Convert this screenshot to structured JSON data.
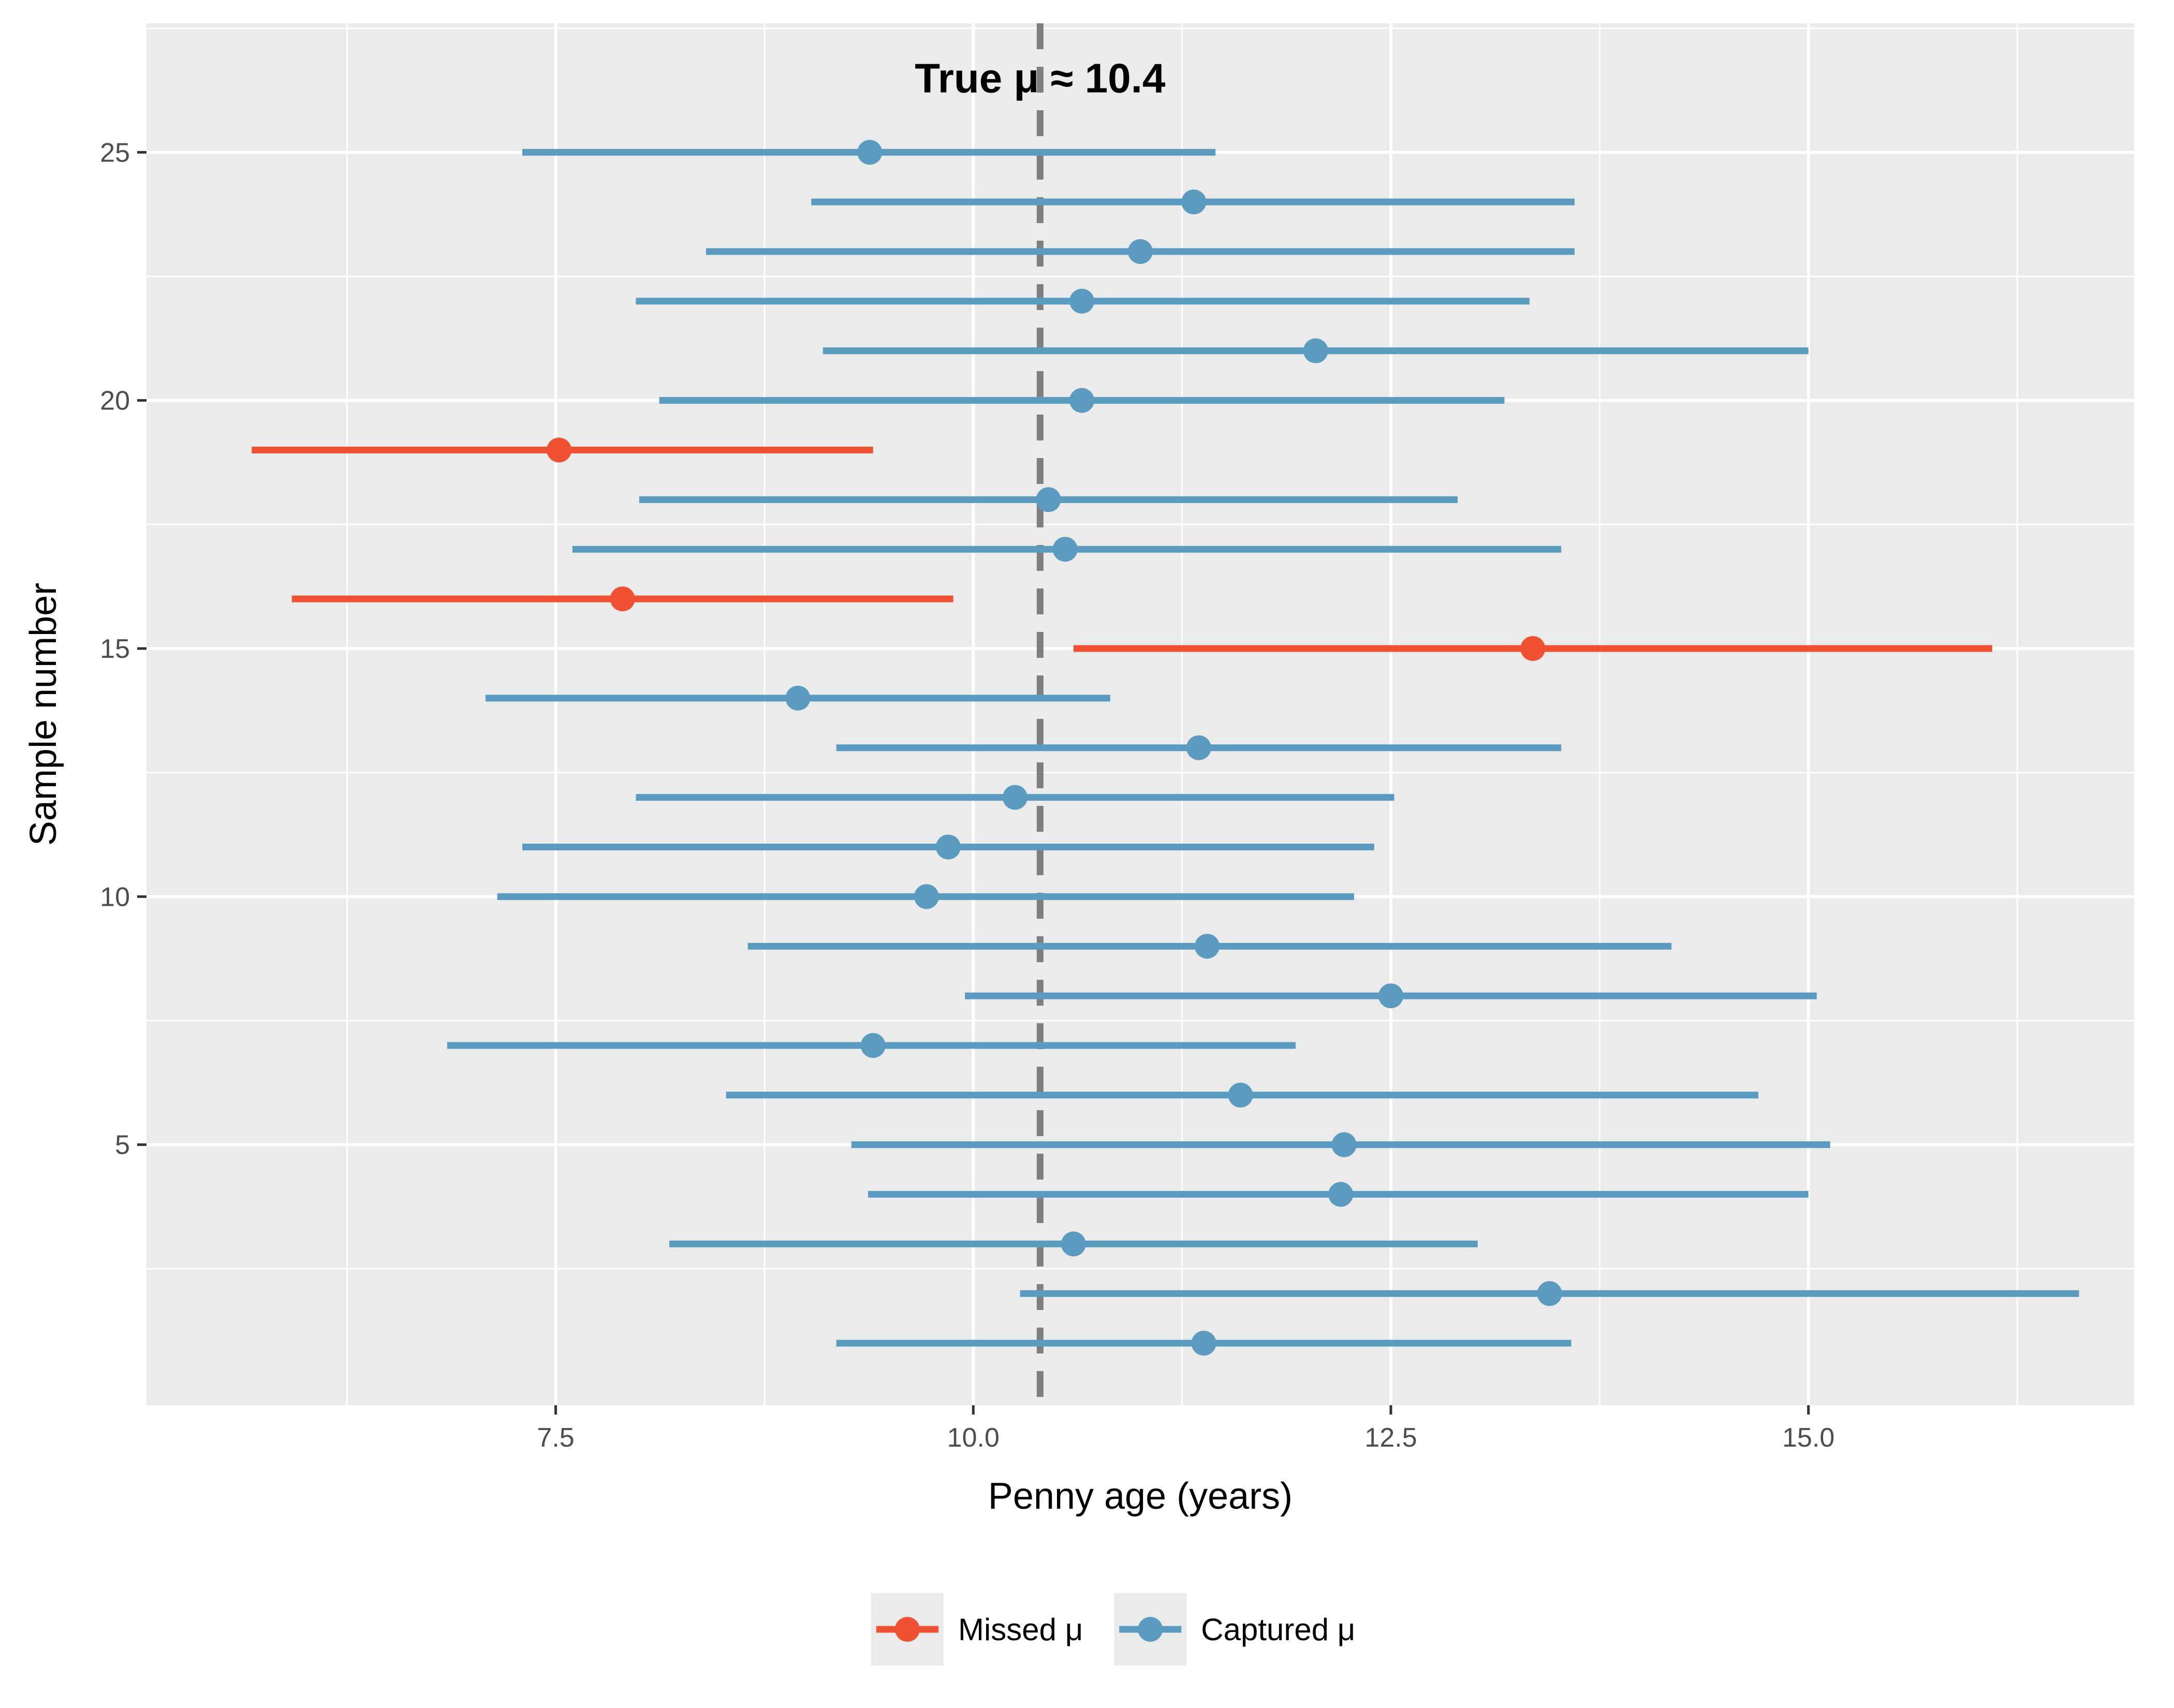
{
  "chart_data": {
    "type": "errorbar",
    "xlabel": "Penny age (years)",
    "ylabel": "Sample number",
    "xlim": [
      5.05,
      16.95
    ],
    "ylim": [
      -0.25,
      27.6
    ],
    "x_ticks": [
      7.5,
      10.0,
      12.5,
      15.0
    ],
    "x_tick_labels": [
      "7.5",
      "10.0",
      "12.5",
      "15.0"
    ],
    "y_ticks": [
      5,
      10,
      15,
      20,
      25
    ],
    "y_tick_labels": [
      "5",
      "10",
      "15",
      "20",
      "25"
    ],
    "grid": true,
    "reference_line": {
      "x": 10.4,
      "style": "dashed",
      "color": "#7f7f7f"
    },
    "annotation": {
      "text": "True μ ≈ 10.4",
      "x": 10.4,
      "y": 26.5
    },
    "colors": {
      "missed": "#f05133",
      "captured": "#5a9bbf"
    },
    "legend": {
      "position": "bottom",
      "entries": [
        {
          "key": "missed",
          "label": "Missed μ"
        },
        {
          "key": "captured",
          "label": "Captured μ"
        }
      ]
    },
    "samples": [
      {
        "sample": 1,
        "estimate": 11.38,
        "lower": 9.18,
        "upper": 13.58,
        "status": "captured"
      },
      {
        "sample": 2,
        "estimate": 13.45,
        "lower": 10.28,
        "upper": 16.62,
        "status": "captured"
      },
      {
        "sample": 3,
        "estimate": 10.6,
        "lower": 8.18,
        "upper": 13.02,
        "status": "captured"
      },
      {
        "sample": 4,
        "estimate": 12.2,
        "lower": 9.37,
        "upper": 15.0,
        "status": "captured"
      },
      {
        "sample": 5,
        "estimate": 12.22,
        "lower": 9.27,
        "upper": 15.13,
        "status": "captured"
      },
      {
        "sample": 6,
        "estimate": 11.6,
        "lower": 8.52,
        "upper": 14.7,
        "status": "captured"
      },
      {
        "sample": 7,
        "estimate": 9.4,
        "lower": 6.85,
        "upper": 11.93,
        "status": "captured"
      },
      {
        "sample": 8,
        "estimate": 12.5,
        "lower": 9.95,
        "upper": 15.05,
        "status": "captured"
      },
      {
        "sample": 9,
        "estimate": 11.4,
        "lower": 8.65,
        "upper": 14.18,
        "status": "captured"
      },
      {
        "sample": 10,
        "estimate": 9.72,
        "lower": 7.15,
        "upper": 12.28,
        "status": "captured"
      },
      {
        "sample": 11,
        "estimate": 9.85,
        "lower": 7.3,
        "upper": 12.4,
        "status": "captured"
      },
      {
        "sample": 12,
        "estimate": 10.25,
        "lower": 7.98,
        "upper": 12.52,
        "status": "captured"
      },
      {
        "sample": 13,
        "estimate": 11.35,
        "lower": 9.18,
        "upper": 13.52,
        "status": "captured"
      },
      {
        "sample": 14,
        "estimate": 8.95,
        "lower": 7.08,
        "upper": 10.82,
        "status": "captured"
      },
      {
        "sample": 15,
        "estimate": 13.35,
        "lower": 10.6,
        "upper": 16.1,
        "status": "missed"
      },
      {
        "sample": 16,
        "estimate": 7.9,
        "lower": 5.92,
        "upper": 9.88,
        "status": "missed"
      },
      {
        "sample": 17,
        "estimate": 10.55,
        "lower": 7.6,
        "upper": 13.52,
        "status": "captured"
      },
      {
        "sample": 18,
        "estimate": 10.45,
        "lower": 8.0,
        "upper": 12.9,
        "status": "captured"
      },
      {
        "sample": 19,
        "estimate": 7.52,
        "lower": 5.68,
        "upper": 9.4,
        "status": "missed"
      },
      {
        "sample": 20,
        "estimate": 10.65,
        "lower": 8.12,
        "upper": 13.18,
        "status": "captured"
      },
      {
        "sample": 21,
        "estimate": 12.05,
        "lower": 9.1,
        "upper": 15.0,
        "status": "captured"
      },
      {
        "sample": 22,
        "estimate": 10.65,
        "lower": 7.98,
        "upper": 13.33,
        "status": "captured"
      },
      {
        "sample": 23,
        "estimate": 11.0,
        "lower": 8.4,
        "upper": 13.6,
        "status": "captured"
      },
      {
        "sample": 24,
        "estimate": 11.32,
        "lower": 9.03,
        "upper": 13.6,
        "status": "captured"
      },
      {
        "sample": 25,
        "estimate": 9.38,
        "lower": 7.3,
        "upper": 11.45,
        "status": "captured"
      }
    ]
  }
}
